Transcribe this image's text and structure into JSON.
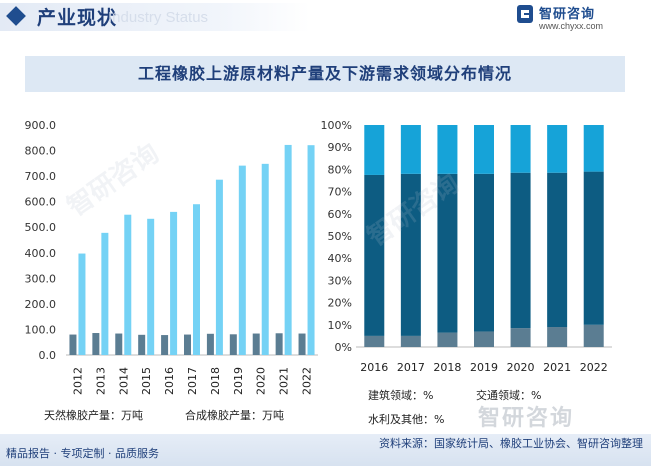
{
  "header": {
    "title": "产业现状",
    "ghost_text": "Industry Status",
    "brand_name": "智研咨询",
    "brand_url": "www.chyxx.com"
  },
  "chart_title": "工程橡胶上游原材料产量及下游需求领域分布情况",
  "footer": {
    "left": "精品报告 · 专项定制 · 品质服务",
    "right": "资料来源：国家统计局、橡胶工业协会、智研咨询整理"
  },
  "watermark_text": "智研咨询",
  "corner_mark": "智研咨询",
  "colors": {
    "natural": "#5b7d92",
    "synthetic": "#74d2f5",
    "construction": "#5b7d92",
    "transport": "#0d5c82",
    "water": "#16a3d8",
    "accent": "#1f4d8f"
  },
  "chart_data": [
    {
      "type": "bar",
      "categories": [
        "2012",
        "2013",
        "2014",
        "2015",
        "2016",
        "2017",
        "2018",
        "2019",
        "2020",
        "2021",
        "2022"
      ],
      "series": [
        {
          "name": "天然橡胶产量：万吨",
          "values": [
            80,
            86,
            84,
            79,
            78,
            80,
            83,
            81,
            84,
            85,
            84
          ]
        },
        {
          "name": "合成橡胶产量：万吨",
          "values": [
            397,
            478,
            549,
            533,
            560,
            590,
            686,
            741,
            748,
            822,
            821
          ]
        }
      ],
      "ylim": [
        0,
        900
      ],
      "yticks": [
        "0.0",
        "100.0",
        "200.0",
        "300.0",
        "400.0",
        "500.0",
        "600.0",
        "700.0",
        "800.0",
        "900.0"
      ],
      "legend": "bottom",
      "grid": false
    },
    {
      "type": "bar",
      "stacked": true,
      "categories": [
        "2016",
        "2017",
        "2018",
        "2019",
        "2020",
        "2021",
        "2022"
      ],
      "series": [
        {
          "name": "建筑领域：%",
          "values": [
            5,
            5,
            6.5,
            7,
            8.5,
            9,
            10
          ]
        },
        {
          "name": "交通领域：%",
          "values": [
            72.5,
            73,
            71.5,
            71,
            70,
            69.5,
            69
          ]
        },
        {
          "name": "水利及其他：%",
          "values": [
            22.5,
            22,
            22,
            22,
            21.5,
            21.5,
            21
          ]
        }
      ],
      "ylim": [
        0,
        100
      ],
      "yticks": [
        "0%",
        "10%",
        "20%",
        "30%",
        "40%",
        "50%",
        "60%",
        "70%",
        "80%",
        "90%",
        "100%"
      ],
      "legend": "bottom",
      "grid": false
    }
  ]
}
